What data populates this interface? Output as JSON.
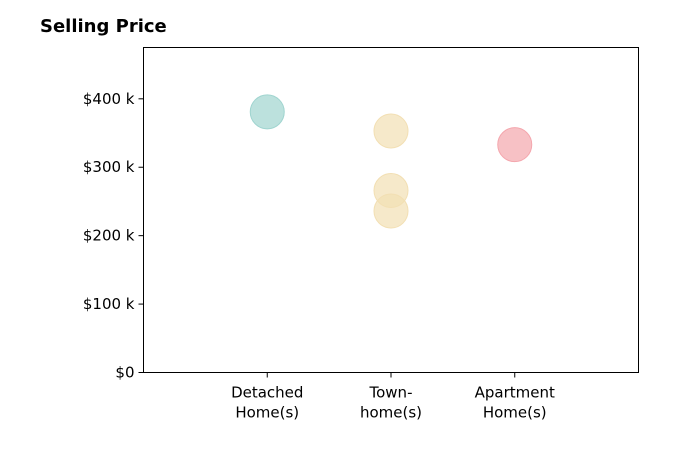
{
  "chart_data": {
    "type": "scatter",
    "title": "Selling Price",
    "xlabel": "",
    "ylabel": "",
    "categories": [
      [
        "Detached",
        "Home(s)"
      ],
      [
        "Town-",
        "home(s)"
      ],
      [
        "Apartment",
        "Home(s)"
      ]
    ],
    "y_ticks": [
      0,
      100,
      200,
      300,
      400
    ],
    "y_tick_labels": [
      "$0",
      "$100 k",
      "$200 k",
      "$300 k",
      "$400 k"
    ],
    "ylim": [
      0,
      475
    ],
    "xlim": [
      -1,
      3
    ],
    "grid": false,
    "points": [
      {
        "category": 0,
        "value": 381,
        "color": "#9fd4cf"
      },
      {
        "category": 1,
        "value": 353,
        "color": "#f2dfb3"
      },
      {
        "category": 1,
        "value": 266,
        "color": "#f2dfb3"
      },
      {
        "category": 1,
        "value": 236,
        "color": "#f2dfb3"
      },
      {
        "category": 2,
        "value": 333,
        "color": "#f4a6ad"
      }
    ]
  }
}
